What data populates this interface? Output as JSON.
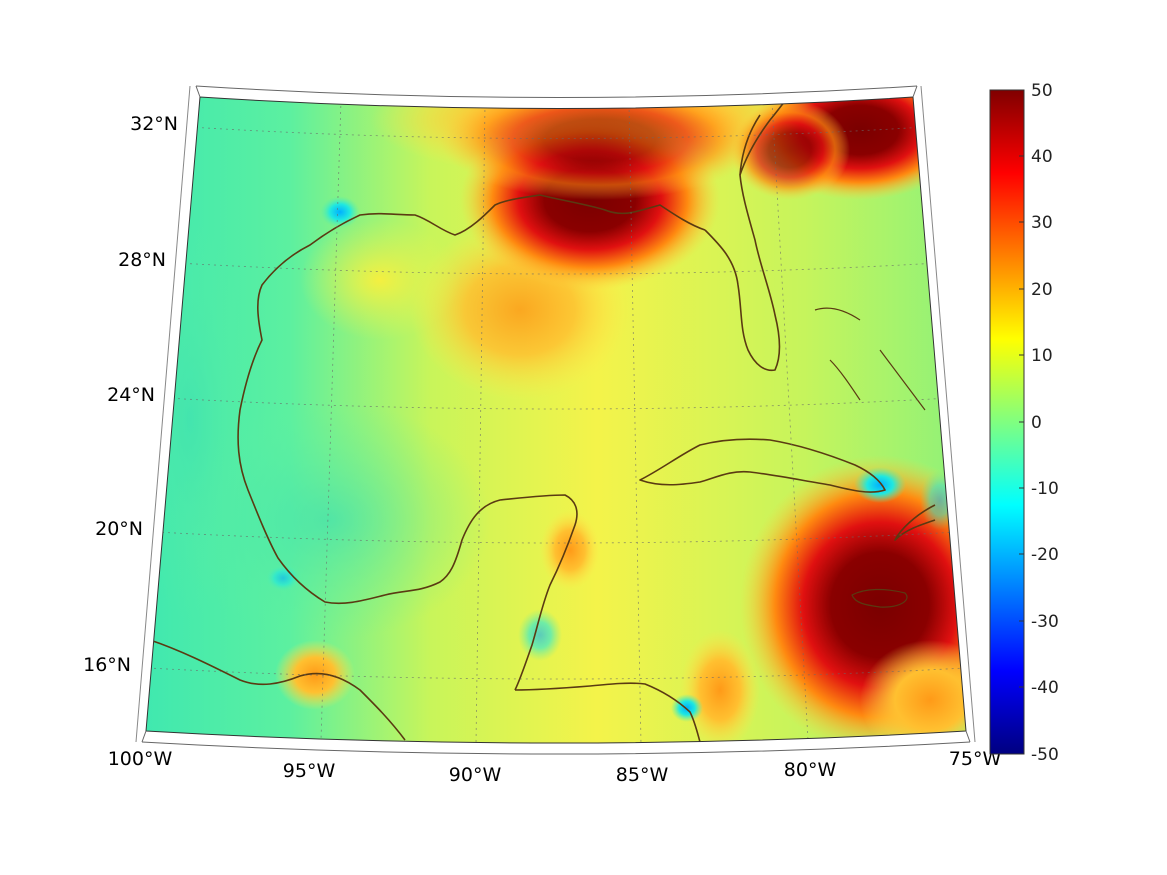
{
  "map": {
    "projection": "conic",
    "lon_labels": [
      "100°W",
      "95°W",
      "90°W",
      "85°W",
      "80°W",
      "75°W"
    ],
    "lat_labels": [
      "16°N",
      "20°N",
      "24°N",
      "28°N",
      "32°N"
    ],
    "lon_values": [
      -100,
      -95,
      -90,
      -85,
      -80,
      -75
    ],
    "lat_values": [
      16,
      20,
      24,
      28,
      32
    ],
    "coastline_color": "#5a3a12",
    "gridlines": "dotted"
  },
  "colorbar": {
    "colormap": "jet",
    "range": [
      -50,
      50
    ],
    "tick_labels": [
      "50",
      "40",
      "30",
      "20",
      "10",
      "0",
      "-10",
      "-20",
      "-30",
      "-40",
      "-50"
    ]
  },
  "field_features": [
    {
      "region": "northern Gulf coast (Louisiana–Alabama)",
      "value": 50
    },
    {
      "region": "Atlantic off Georgia/Carolinas",
      "value": 50
    },
    {
      "region": "around Jamaica",
      "value": 50
    },
    {
      "region": "central Gulf",
      "value": 20
    },
    {
      "region": "southwest Gulf (Bay of Campeche)",
      "value": 0
    },
    {
      "region": "Gulf of Tehuantepec",
      "value": 25
    },
    {
      "region": "Yucatán coast near Cuba",
      "value": -10
    }
  ]
}
